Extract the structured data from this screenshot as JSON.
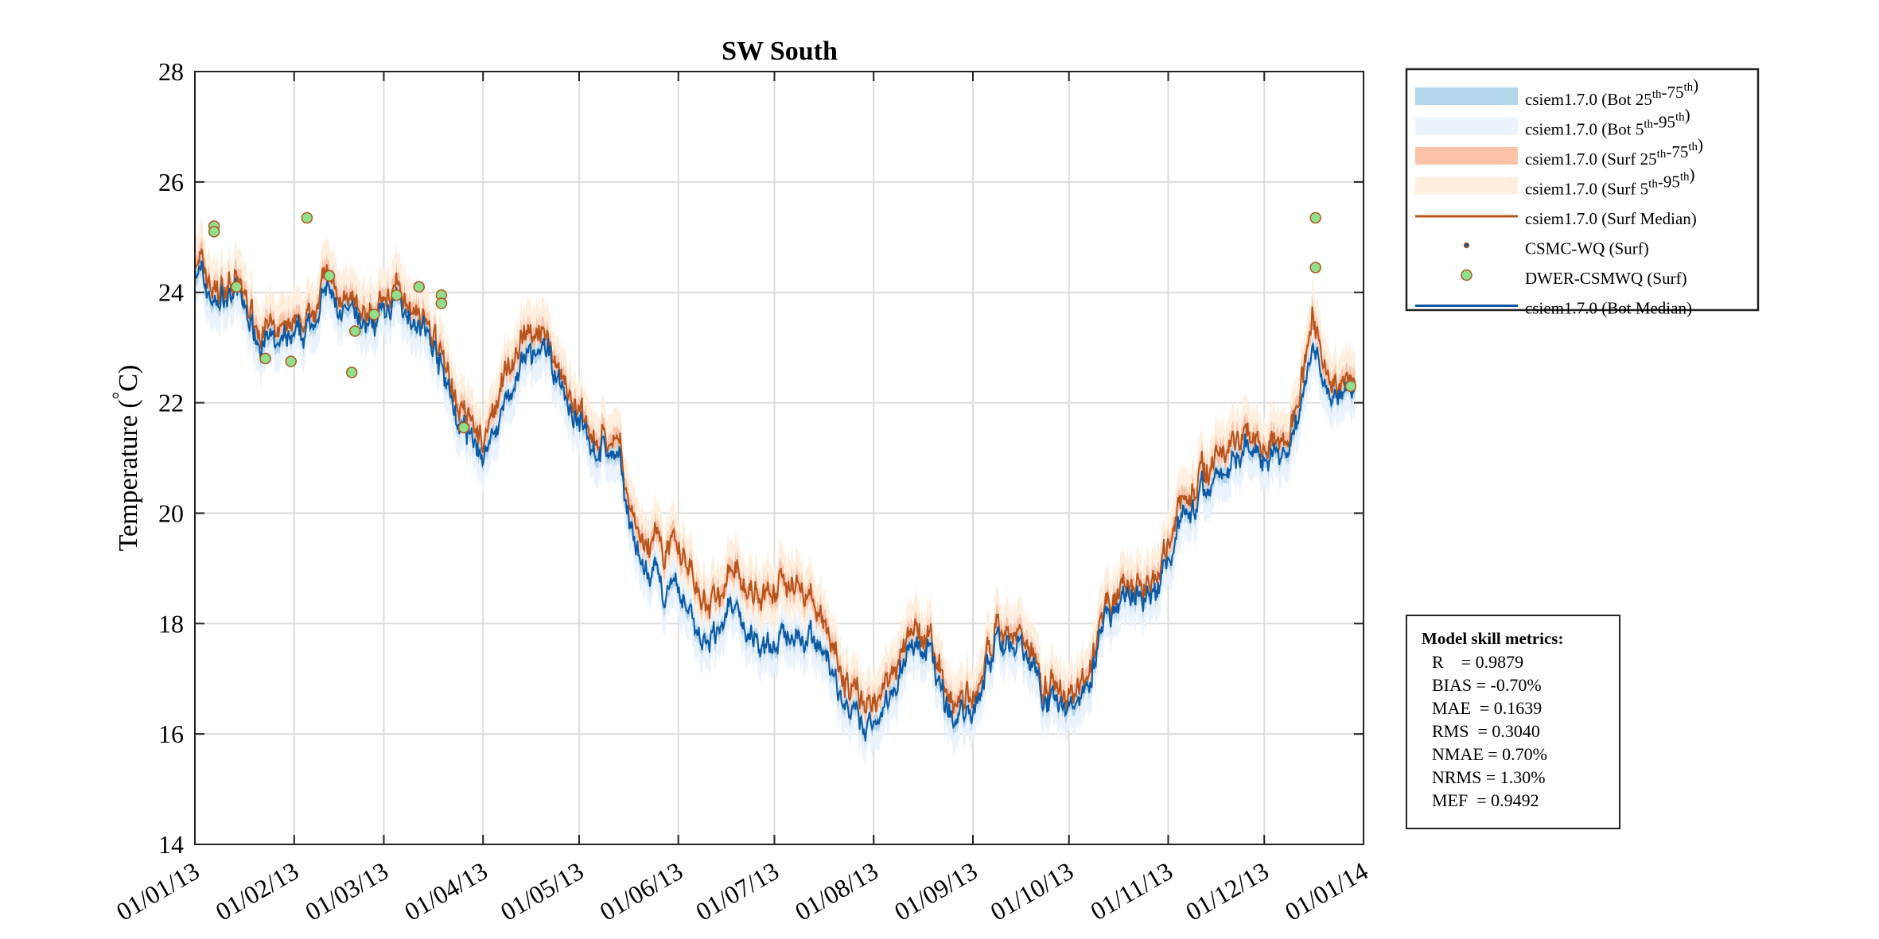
{
  "chart_data": {
    "type": "line",
    "title": "SW South",
    "ylabel": "Temperature (°C)",
    "ylabel_parts": {
      "main": "Temperature (",
      "deg": "°",
      "unit": "C)"
    },
    "ylim": [
      14,
      28
    ],
    "yticks": [
      14,
      16,
      18,
      20,
      22,
      24,
      26,
      28
    ],
    "xlim": [
      "2013-01-01",
      "2014-01-01"
    ],
    "xticks": [
      {
        "date": "2013-01-01",
        "label": "01/01/13"
      },
      {
        "date": "2013-02-01",
        "label": "01/02/13"
      },
      {
        "date": "2013-03-01",
        "label": "01/03/13"
      },
      {
        "date": "2013-04-01",
        "label": "01/04/13"
      },
      {
        "date": "2013-05-01",
        "label": "01/05/13"
      },
      {
        "date": "2013-06-01",
        "label": "01/06/13"
      },
      {
        "date": "2013-07-01",
        "label": "01/07/13"
      },
      {
        "date": "2013-08-01",
        "label": "01/08/13"
      },
      {
        "date": "2013-09-01",
        "label": "01/09/13"
      },
      {
        "date": "2013-10-01",
        "label": "01/10/13"
      },
      {
        "date": "2013-11-01",
        "label": "01/11/13"
      },
      {
        "date": "2013-12-01",
        "label": "01/12/13"
      },
      {
        "date": "2014-01-01",
        "label": "01/01/14"
      }
    ],
    "grid": true,
    "legend_placement": "outside-top-right",
    "colors": {
      "bot_25_75": "#b3d5ea",
      "bot_5_95": "#eaf2fb",
      "surf_25_75": "#fcc2a8",
      "surf_5_95": "#fdeede",
      "surf_median": "#b5541c",
      "bot_median": "#0c59a3",
      "dwer_fill": "#8fe08a",
      "dwer_edge": "#b5541c"
    },
    "legend": [
      {
        "key": "bot_25_75",
        "kind": "patch",
        "label": "csiem1.7.0 (Bot ",
        "sup": [
          [
            "25",
            "th"
          ],
          [
            "-75",
            "th"
          ]
        ],
        "tail": ")"
      },
      {
        "key": "bot_5_95",
        "kind": "patch",
        "label": "csiem1.7.0 (Bot ",
        "sup": [
          [
            "5",
            "th"
          ],
          [
            "-95",
            "th"
          ]
        ],
        "tail": ")"
      },
      {
        "key": "surf_25_75",
        "kind": "patch",
        "label": "csiem1.7.0 (Surf ",
        "sup": [
          [
            "25",
            "th"
          ],
          [
            "-75",
            "th"
          ]
        ],
        "tail": ")"
      },
      {
        "key": "surf_5_95",
        "kind": "patch",
        "label": "csiem1.7.0 (Surf ",
        "sup": [
          [
            "5",
            "th"
          ],
          [
            "-95",
            "th"
          ]
        ],
        "tail": ")"
      },
      {
        "key": "surf_median",
        "kind": "line",
        "label": "csiem1.7.0 (Surf Median)"
      },
      {
        "key": "csmc",
        "kind": "smalldot",
        "label": "CSMC-WQ (Surf)"
      },
      {
        "key": "dwer",
        "kind": "dot",
        "label": "DWER-CSMWQ (Surf)"
      },
      {
        "key": "bot_median",
        "kind": "line",
        "label": "csiem1.7.0 (Bot Median)"
      }
    ],
    "series": [
      {
        "name": "csiem1.7.0 (Bot Median)",
        "x": [
          "2013-01-01",
          "2013-01-07",
          "2013-01-14",
          "2013-01-21",
          "2013-01-28",
          "2013-02-04",
          "2013-02-11",
          "2013-02-18",
          "2013-02-25",
          "2013-03-04",
          "2013-03-11",
          "2013-03-18",
          "2013-03-25",
          "2013-04-01",
          "2013-04-08",
          "2013-04-15",
          "2013-04-22",
          "2013-04-29",
          "2013-05-06",
          "2013-05-13",
          "2013-05-20",
          "2013-05-27",
          "2013-06-03",
          "2013-06-10",
          "2013-06-17",
          "2013-06-24",
          "2013-07-01",
          "2013-07-08",
          "2013-07-15",
          "2013-07-22",
          "2013-07-29",
          "2013-08-05",
          "2013-08-12",
          "2013-08-19",
          "2013-08-26",
          "2013-09-02",
          "2013-09-09",
          "2013-09-16",
          "2013-09-23",
          "2013-09-30",
          "2013-10-07",
          "2013-10-14",
          "2013-10-21",
          "2013-10-28",
          "2013-11-04",
          "2013-11-11",
          "2013-11-18",
          "2013-11-25",
          "2013-12-02",
          "2013-12-09",
          "2013-12-16",
          "2013-12-23",
          "2013-12-31"
        ],
        "values": [
          24.5,
          23.8,
          24.0,
          23.2,
          23.0,
          23.2,
          24.0,
          23.5,
          23.4,
          23.8,
          23.6,
          22.8,
          21.5,
          21.0,
          22.0,
          22.8,
          22.8,
          21.8,
          21.2,
          21.0,
          19.0,
          18.6,
          18.4,
          17.5,
          18.3,
          17.7,
          17.6,
          17.9,
          17.7,
          16.6,
          16.0,
          16.6,
          17.6,
          17.4,
          16.2,
          16.6,
          17.8,
          17.6,
          16.8,
          16.4,
          17.0,
          18.2,
          18.5,
          18.4,
          19.8,
          20.3,
          20.8,
          21.2,
          21.1,
          21.0,
          23.0,
          22.2,
          22.3
        ]
      },
      {
        "name": "csiem1.7.0 (Surf Median)",
        "x": [
          "2013-01-01",
          "2013-01-07",
          "2013-01-14",
          "2013-01-21",
          "2013-01-28",
          "2013-02-04",
          "2013-02-11",
          "2013-02-18",
          "2013-02-25",
          "2013-03-04",
          "2013-03-11",
          "2013-03-18",
          "2013-03-25",
          "2013-04-01",
          "2013-04-08",
          "2013-04-15",
          "2013-04-22",
          "2013-04-29",
          "2013-05-06",
          "2013-05-13",
          "2013-05-20",
          "2013-05-27",
          "2013-06-03",
          "2013-06-10",
          "2013-06-17",
          "2013-06-24",
          "2013-07-01",
          "2013-07-08",
          "2013-07-15",
          "2013-07-22",
          "2013-07-29",
          "2013-08-05",
          "2013-08-12",
          "2013-08-19",
          "2013-08-26",
          "2013-09-02",
          "2013-09-09",
          "2013-09-16",
          "2013-09-23",
          "2013-09-30",
          "2013-10-07",
          "2013-10-14",
          "2013-10-21",
          "2013-10-28",
          "2013-11-04",
          "2013-11-11",
          "2013-11-18",
          "2013-11-25",
          "2013-12-02",
          "2013-12-09",
          "2013-12-16",
          "2013-12-23",
          "2013-12-31"
        ],
        "values": [
          24.7,
          24.0,
          24.2,
          23.4,
          23.2,
          23.4,
          24.3,
          23.7,
          23.6,
          24.0,
          23.8,
          23.0,
          21.8,
          21.3,
          22.5,
          23.2,
          23.0,
          22.0,
          21.4,
          21.2,
          19.4,
          19.3,
          19.2,
          18.2,
          18.9,
          18.5,
          18.6,
          18.8,
          18.3,
          17.0,
          16.4,
          17.0,
          17.9,
          17.6,
          16.5,
          16.8,
          18.0,
          17.8,
          17.0,
          16.6,
          17.2,
          18.4,
          18.7,
          18.6,
          20.1,
          20.6,
          21.2,
          21.5,
          21.3,
          21.2,
          23.5,
          22.4,
          22.4
        ]
      }
    ],
    "observations": {
      "name": "DWER-CSMWQ (Surf)",
      "x": [
        "2013-01-07",
        "2013-01-07",
        "2013-01-14",
        "2013-01-23",
        "2013-01-31",
        "2013-02-05",
        "2013-02-12",
        "2013-02-19",
        "2013-02-20",
        "2013-02-26",
        "2013-03-05",
        "2013-03-12",
        "2013-03-19",
        "2013-03-19",
        "2013-03-26",
        "2013-12-17",
        "2013-12-17",
        "2013-12-28"
      ],
      "values": [
        25.2,
        25.1,
        24.1,
        22.8,
        22.75,
        25.35,
        24.3,
        22.55,
        23.3,
        23.6,
        23.95,
        24.1,
        23.95,
        23.8,
        21.55,
        25.35,
        24.45,
        22.3
      ]
    }
  },
  "metrics": {
    "title": "Model skill metrics:",
    "lines": [
      "R    = 0.9879",
      "BIAS = -0.70%",
      "MAE  = 0.1639",
      "RMS  = 0.3040",
      "NMAE = 0.70%",
      "NRMS = 1.30%",
      "MEF  = 0.9492"
    ]
  }
}
